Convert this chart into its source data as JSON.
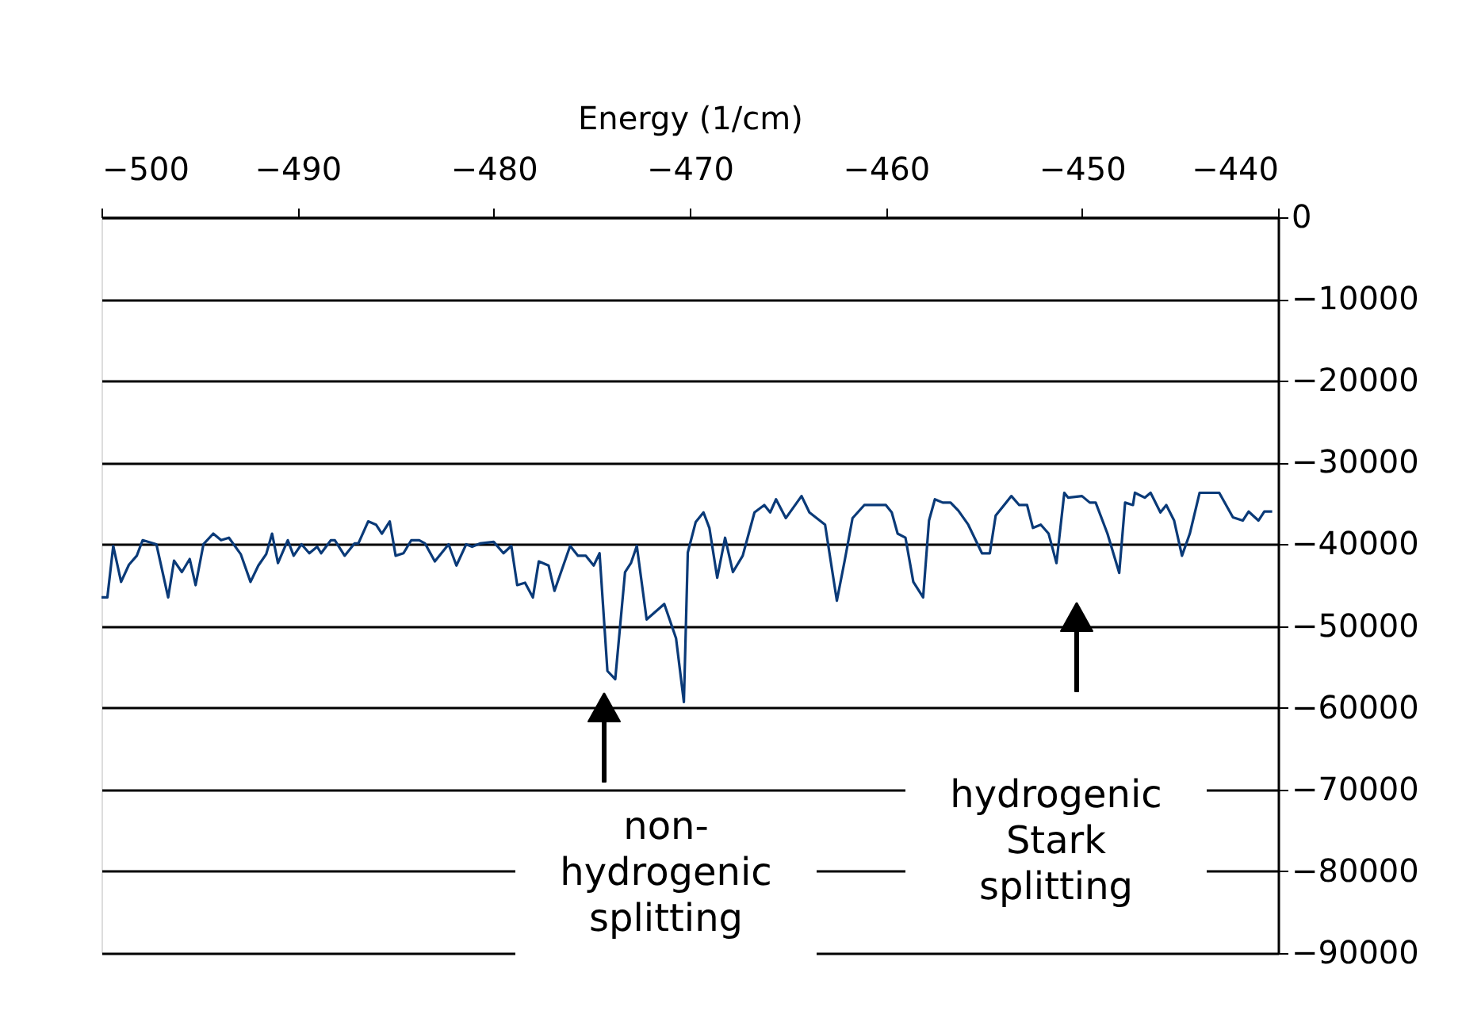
{
  "chart_data": {
    "type": "line",
    "xlabel": "Energy (1/cm)",
    "x": [
      -500.0,
      -499.7,
      -499.4,
      -499.0,
      -498.6,
      -498.2,
      -497.9,
      -497.2,
      -496.6,
      -496.3,
      -495.9,
      -495.5,
      -495.2,
      -494.8,
      -494.3,
      -493.9,
      -493.5,
      -492.9,
      -492.4,
      -492.0,
      -491.6,
      -491.3,
      -491.0,
      -490.5,
      -490.2,
      -489.8,
      -489.4,
      -489.0,
      -488.8,
      -488.3,
      -488.1,
      -487.6,
      -487.1,
      -486.9,
      -486.4,
      -486.0,
      -485.7,
      -485.3,
      -485.0,
      -484.6,
      -484.2,
      -483.8,
      -483.5,
      -483.0,
      -482.3,
      -481.9,
      -481.4,
      -481.1,
      -480.7,
      -480.0,
      -479.5,
      -479.1,
      -478.8,
      -478.4,
      -478.0,
      -477.7,
      -477.2,
      -476.9,
      -476.1,
      -475.7,
      -475.3,
      -474.9,
      -474.6,
      -474.2,
      -473.8,
      -473.3,
      -473.0,
      -472.7,
      -472.2,
      -471.3,
      -470.7,
      -470.3,
      -470.1,
      -469.7,
      -469.3,
      -469.0,
      -468.6,
      -468.2,
      -467.8,
      -467.3,
      -466.7,
      -466.2,
      -465.9,
      -465.6,
      -465.1,
      -464.3,
      -463.9,
      -463.1,
      -462.5,
      -462.1,
      -461.7,
      -461.1,
      -460.0,
      -459.7,
      -459.4,
      -459.0,
      -458.6,
      -458.1,
      -457.8,
      -457.5,
      -457.1,
      -456.7,
      -456.3,
      -455.8,
      -455.1,
      -454.7,
      -454.4,
      -453.6,
      -453.2,
      -452.8,
      -452.5,
      -452.1,
      -451.7,
      -451.3,
      -450.9,
      -450.7,
      -450.0,
      -449.6,
      -449.3,
      -448.7,
      -448.1,
      -447.8,
      -447.4,
      -447.3,
      -446.8,
      -446.5,
      -446.0,
      -445.7,
      -445.3,
      -444.9,
      -444.5,
      -444.0,
      -443.0,
      -442.3,
      -441.8,
      -441.5,
      -441.0,
      -440.7,
      -440.3
    ],
    "series": [
      {
        "color": "#0a3a78",
        "values": [
          -46500,
          -46500,
          -40200,
          -44600,
          -42500,
          -41400,
          -39500,
          -40000,
          -46500,
          -42000,
          -43400,
          -41800,
          -45000,
          -40000,
          -38700,
          -39500,
          -39200,
          -41200,
          -44600,
          -42600,
          -41200,
          -38700,
          -42300,
          -39500,
          -41400,
          -40000,
          -41100,
          -40300,
          -41100,
          -39500,
          -39500,
          -41400,
          -39900,
          -39900,
          -37200,
          -37600,
          -38700,
          -37200,
          -41400,
          -41100,
          -39500,
          -39500,
          -39900,
          -42100,
          -40000,
          -42600,
          -40000,
          -40300,
          -39900,
          -39700,
          -41100,
          -40200,
          -45000,
          -44700,
          -46500,
          -42100,
          -42600,
          -45700,
          -40200,
          -41400,
          -41400,
          -42600,
          -41100,
          -55500,
          -56500,
          -43400,
          -42300,
          -40200,
          -49200,
          -47300,
          -51500,
          -59300,
          -41000,
          -37300,
          -36100,
          -38000,
          -44100,
          -39200,
          -43400,
          -41400,
          -36100,
          -35200,
          -36100,
          -34500,
          -36800,
          -34100,
          -36100,
          -37600,
          -46900,
          -42000,
          -36800,
          -35200,
          -35200,
          -36100,
          -38700,
          -39200,
          -44600,
          -46500,
          -37100,
          -34500,
          -34900,
          -34900,
          -35900,
          -37600,
          -41100,
          -41100,
          -36500,
          -34100,
          -35200,
          -35200,
          -38000,
          -37600,
          -38700,
          -42300,
          -33700,
          -34300,
          -34100,
          -34900,
          -34900,
          -38700,
          -43500,
          -34900,
          -35200,
          -33700,
          -34300,
          -33700,
          -36100,
          -35200,
          -37100,
          -41400,
          -38700,
          -33700,
          -33700,
          -36700,
          -37100,
          -36000,
          -37100,
          -36000,
          -36000
        ]
      }
    ],
    "xlim": [
      -500,
      -440
    ],
    "xticks": [
      -500,
      -490,
      -480,
      -470,
      -460,
      -450,
      -440
    ],
    "ylim": [
      -90000,
      0
    ],
    "yticks": [
      0,
      -10000,
      -20000,
      -30000,
      -40000,
      -50000,
      -60000,
      -70000,
      -80000,
      -90000
    ],
    "grid": "y",
    "legend": false,
    "marker": "none",
    "line_style": "solid",
    "annotations": [
      "non-\nhydrogenic\nsplitting",
      "hydrogenic\nStark\nsplitting"
    ]
  }
}
